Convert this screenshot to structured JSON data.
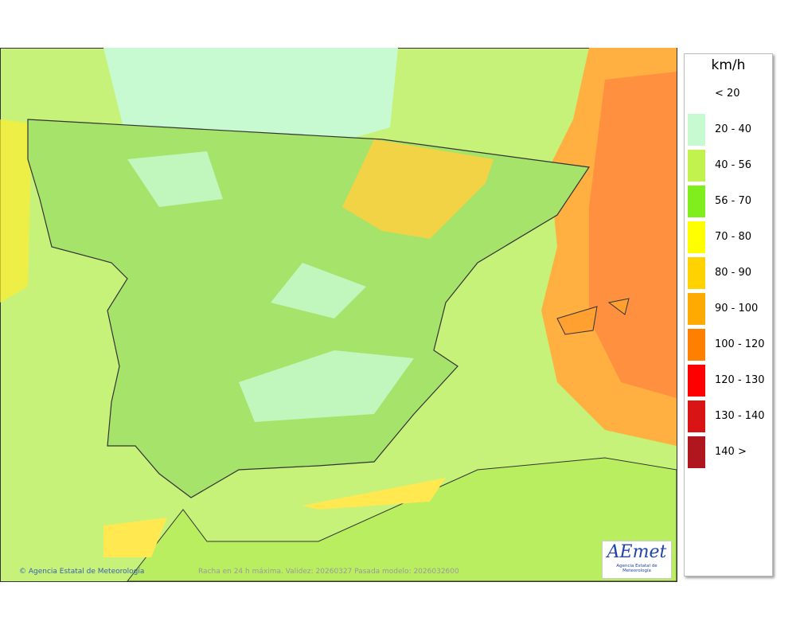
{
  "legend": {
    "unit": "km/h",
    "entries": [
      {
        "label": "< 20",
        "color": "#ffffff"
      },
      {
        "label": "20 - 40",
        "color": "#c8fad2"
      },
      {
        "label": "40 - 56",
        "color": "#c2f24e"
      },
      {
        "label": "56 - 70",
        "color": "#80ee1c"
      },
      {
        "label": "70 - 80",
        "color": "#ffff00"
      },
      {
        "label": "80 - 90",
        "color": "#ffd200"
      },
      {
        "label": "90 - 100",
        "color": "#ffaa00"
      },
      {
        "label": "100 - 120",
        "color": "#ff8000"
      },
      {
        "label": "120 - 130",
        "color": "#ff0000"
      },
      {
        "label": "130 - 140",
        "color": "#d81414"
      },
      {
        "label": "140 >",
        "color": "#b0161e"
      }
    ]
  },
  "credit": "Agencia Estatal de Meteorología",
  "footer": "Racha en 24 h máxima. Validez: 20260327 Pasada modelo: 2026032600",
  "logo": {
    "name": "AEmet",
    "subtitle": "Agencia Estatal de Meteorología"
  }
}
